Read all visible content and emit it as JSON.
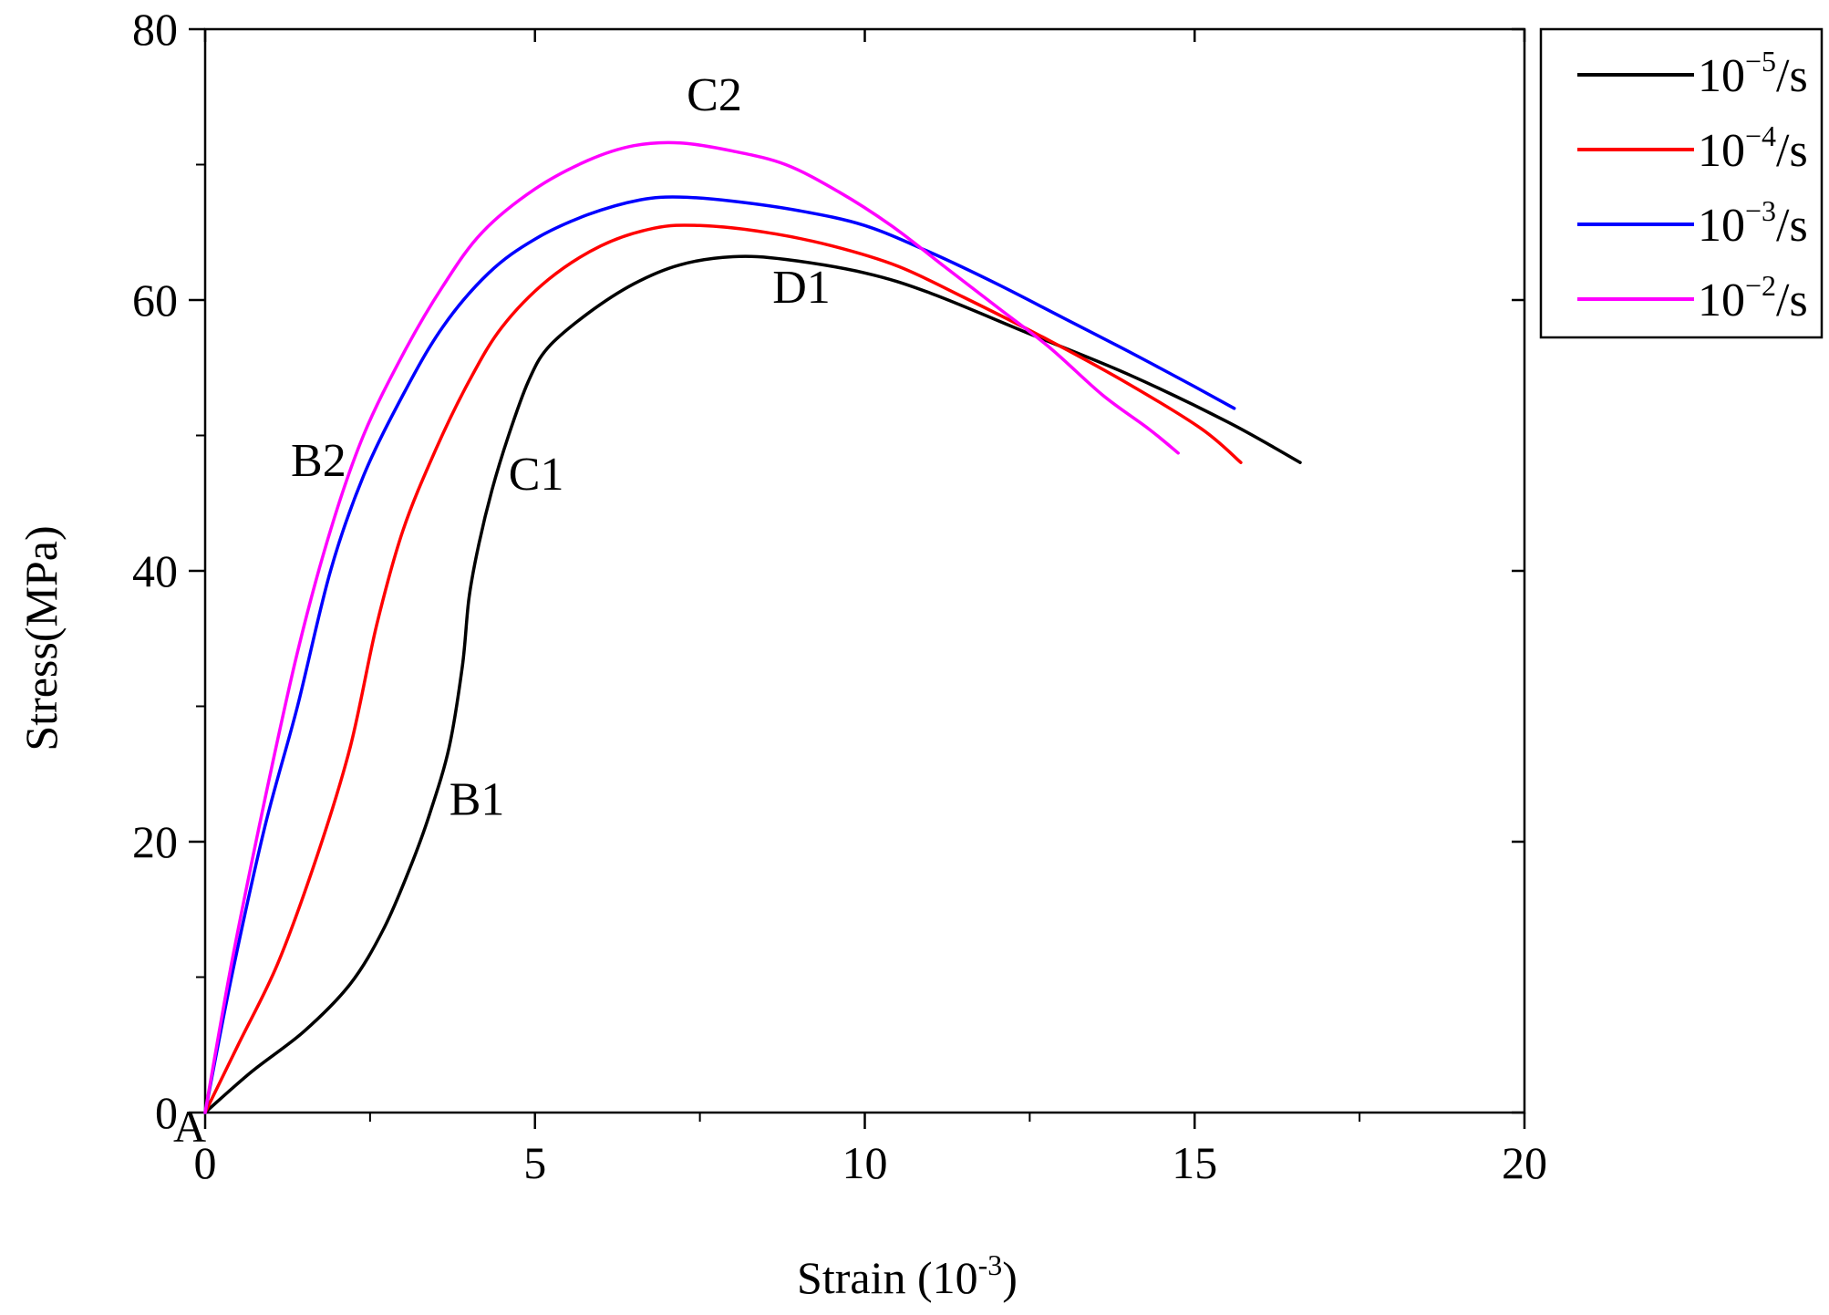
{
  "chart_data": {
    "type": "line",
    "title": "",
    "xlabel": "Strain (10",
    "xlabel_exp": "-3",
    "xlabel_suffix": ")",
    "ylabel": "Stress(MPa)",
    "xlim": [
      0,
      20
    ],
    "ylim": [
      0,
      80
    ],
    "x_ticks": [
      0,
      5,
      10,
      15,
      20
    ],
    "x_tick_labels": [
      "0",
      "5",
      "10",
      "15",
      "20"
    ],
    "y_ticks": [
      0,
      20,
      40,
      60,
      80
    ],
    "y_tick_labels": [
      "0",
      "20",
      "40",
      "60",
      "80"
    ],
    "origin_label": "A",
    "grid": false,
    "legend_position": "right, outside plot area (top)",
    "series": [
      {
        "name": "10^-5/s",
        "legend_base": "10",
        "legend_exp": "-5",
        "legend_unit": "/s",
        "color": "#000000",
        "points": [
          [
            0,
            0
          ],
          [
            0.7,
            3
          ],
          [
            1.5,
            6
          ],
          [
            2.2,
            9.5
          ],
          [
            2.7,
            13.5
          ],
          [
            3.1,
            18
          ],
          [
            3.4,
            22
          ],
          [
            3.7,
            27
          ],
          [
            3.9,
            33
          ],
          [
            4.0,
            38
          ],
          [
            4.15,
            42
          ],
          [
            4.35,
            46
          ],
          [
            4.6,
            50
          ],
          [
            4.9,
            54
          ],
          [
            5.2,
            56.5
          ],
          [
            5.8,
            59
          ],
          [
            6.5,
            61.2
          ],
          [
            7.2,
            62.6
          ],
          [
            8.0,
            63.2
          ],
          [
            8.8,
            63.0
          ],
          [
            10.0,
            62.0
          ],
          [
            11.0,
            60.5
          ],
          [
            12.5,
            57.5
          ],
          [
            14.0,
            54.5
          ],
          [
            15.5,
            51.0
          ],
          [
            16.6,
            48.0
          ]
        ]
      },
      {
        "name": "10^-4/s",
        "legend_base": "10",
        "legend_exp": "-4",
        "legend_unit": "/s",
        "color": "#ff0000",
        "points": [
          [
            0,
            0
          ],
          [
            0.5,
            5
          ],
          [
            1.1,
            11
          ],
          [
            1.7,
            19
          ],
          [
            2.2,
            27
          ],
          [
            2.6,
            36
          ],
          [
            3.0,
            43
          ],
          [
            3.5,
            49
          ],
          [
            4.0,
            54
          ],
          [
            4.5,
            58
          ],
          [
            5.2,
            61.5
          ],
          [
            6.0,
            64
          ],
          [
            6.8,
            65.3
          ],
          [
            7.5,
            65.5
          ],
          [
            8.5,
            65.0
          ],
          [
            9.5,
            64.0
          ],
          [
            10.5,
            62.5
          ],
          [
            11.5,
            60.2
          ],
          [
            12.8,
            57.0
          ],
          [
            14.0,
            53.8
          ],
          [
            15.1,
            50.5
          ],
          [
            15.7,
            48.0
          ]
        ]
      },
      {
        "name": "10^-3/s",
        "legend_base": "10",
        "legend_exp": "-3",
        "legend_unit": "/s",
        "color": "#0000ff",
        "points": [
          [
            0,
            0
          ],
          [
            0.4,
            10
          ],
          [
            0.9,
            21
          ],
          [
            1.4,
            30
          ],
          [
            1.9,
            40
          ],
          [
            2.4,
            47
          ],
          [
            3.0,
            53
          ],
          [
            3.6,
            58
          ],
          [
            4.3,
            62
          ],
          [
            5.0,
            64.5
          ],
          [
            5.8,
            66.3
          ],
          [
            6.6,
            67.4
          ],
          [
            7.2,
            67.6
          ],
          [
            8.0,
            67.3
          ],
          [
            9.0,
            66.6
          ],
          [
            10.0,
            65.5
          ],
          [
            11.0,
            63.5
          ],
          [
            12.0,
            61.2
          ],
          [
            13.0,
            58.7
          ],
          [
            14.0,
            56.2
          ],
          [
            15.0,
            53.6
          ],
          [
            15.6,
            52.0
          ]
        ]
      },
      {
        "name": "10^-2/s",
        "legend_base": "10",
        "legend_exp": "-2",
        "legend_unit": "/s",
        "color": "#ff00ff",
        "points": [
          [
            0,
            0
          ],
          [
            0.4,
            11
          ],
          [
            0.9,
            23
          ],
          [
            1.4,
            34
          ],
          [
            1.9,
            43
          ],
          [
            2.4,
            50
          ],
          [
            3.0,
            56
          ],
          [
            3.6,
            61
          ],
          [
            4.2,
            65
          ],
          [
            5.0,
            68.2
          ],
          [
            5.8,
            70.3
          ],
          [
            6.5,
            71.4
          ],
          [
            7.2,
            71.6
          ],
          [
            8.0,
            71.0
          ],
          [
            8.8,
            70.0
          ],
          [
            9.6,
            68.0
          ],
          [
            10.4,
            65.5
          ],
          [
            11.2,
            62.5
          ],
          [
            12.0,
            59.5
          ],
          [
            12.8,
            56.5
          ],
          [
            13.6,
            53.0
          ],
          [
            14.3,
            50.5
          ],
          [
            14.75,
            48.7
          ]
        ]
      }
    ],
    "annotations": [
      {
        "text": "B1",
        "x": 3.7,
        "y": 22
      },
      {
        "text": "C1",
        "x": 4.6,
        "y": 46
      },
      {
        "text": "D1",
        "x": 8.6,
        "y": 59.8
      },
      {
        "text": "B2",
        "x": 1.3,
        "y": 47
      },
      {
        "text": "C2",
        "x": 7.3,
        "y": 74
      }
    ]
  }
}
